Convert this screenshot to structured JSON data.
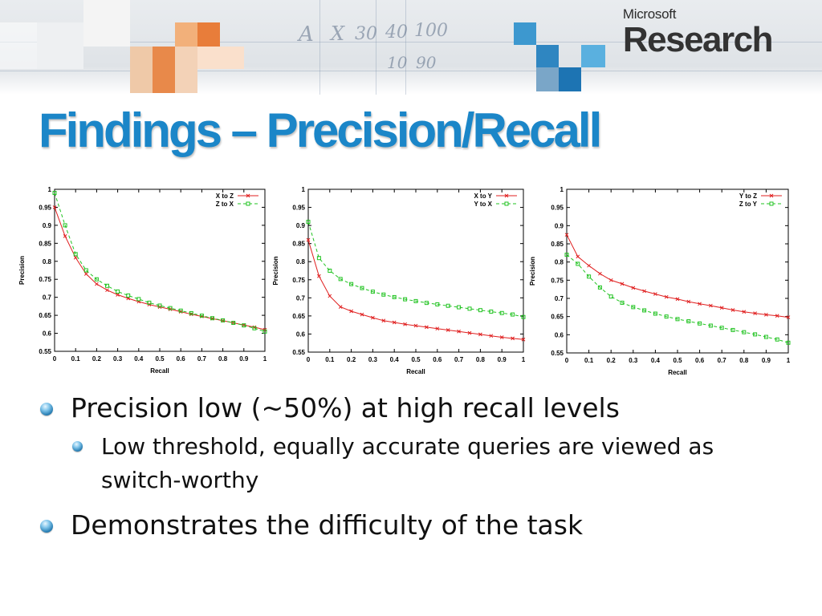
{
  "header": {
    "logo_top": "Microsoft",
    "logo_bottom": "Research",
    "scribbles": [
      "A",
      "X",
      "30",
      "40",
      "100",
      "10",
      "90"
    ]
  },
  "slide": {
    "title": "Findings – Precision/Recall"
  },
  "bullets": [
    {
      "level": 1,
      "text": "Precision low (~50%) at high recall levels"
    },
    {
      "level": 2,
      "text": "Low threshold, equally accurate queries are viewed as switch-worthy"
    },
    {
      "level": 1,
      "text": "Demonstrates the difficulty of the task"
    }
  ],
  "colors": {
    "title": "#1b86c8",
    "series_solid": "#e02020",
    "series_dashed": "#22c322"
  },
  "chart_data": [
    {
      "type": "line",
      "xlabel": "Recall",
      "ylabel": "Precision",
      "xlim": [
        0,
        1
      ],
      "ylim": [
        0.55,
        1
      ],
      "xticks": [
        "0",
        "0.1",
        "0.2",
        "0.3",
        "0.4",
        "0.5",
        "0.6",
        "0.7",
        "0.8",
        "0.9",
        "1"
      ],
      "yticks": [
        "0.55",
        "0.6",
        "0.65",
        "0.7",
        "0.75",
        "0.8",
        "0.85",
        "0.9",
        "0.95",
        "1"
      ],
      "legend": "top-right",
      "x": [
        0,
        0.05,
        0.1,
        0.15,
        0.2,
        0.25,
        0.3,
        0.35,
        0.4,
        0.45,
        0.5,
        0.55,
        0.6,
        0.65,
        0.7,
        0.75,
        0.8,
        0.85,
        0.9,
        0.95,
        1.0
      ],
      "series": [
        {
          "name": "X to Z",
          "style": "solid",
          "marker": "x",
          "values": [
            0.95,
            0.87,
            0.81,
            0.765,
            0.737,
            0.72,
            0.707,
            0.697,
            0.688,
            0.68,
            0.673,
            0.667,
            0.66,
            0.653,
            0.647,
            0.641,
            0.635,
            0.629,
            0.623,
            0.617,
            0.61
          ]
        },
        {
          "name": "Z to X",
          "style": "dashed",
          "marker": "square",
          "values": [
            0.99,
            0.9,
            0.82,
            0.775,
            0.75,
            0.732,
            0.716,
            0.705,
            0.695,
            0.685,
            0.677,
            0.67,
            0.663,
            0.656,
            0.649,
            0.642,
            0.636,
            0.629,
            0.622,
            0.614,
            0.605
          ]
        }
      ]
    },
    {
      "type": "line",
      "xlabel": "Recall",
      "ylabel": "Precision",
      "xlim": [
        0,
        1
      ],
      "ylim": [
        0.55,
        1
      ],
      "xticks": [
        "0",
        "0.1",
        "0.2",
        "0.3",
        "0.4",
        "0.5",
        "0.6",
        "0.7",
        "0.8",
        "0.9",
        "1"
      ],
      "yticks": [
        "0.55",
        "0.6",
        "0.65",
        "0.7",
        "0.75",
        "0.8",
        "0.85",
        "0.9",
        "0.95",
        "1"
      ],
      "legend": "top-right",
      "x": [
        0,
        0.05,
        0.1,
        0.15,
        0.2,
        0.25,
        0.3,
        0.35,
        0.4,
        0.45,
        0.5,
        0.55,
        0.6,
        0.65,
        0.7,
        0.75,
        0.8,
        0.85,
        0.9,
        0.95,
        1.0
      ],
      "series": [
        {
          "name": "X to Y",
          "style": "solid",
          "marker": "x",
          "values": [
            0.86,
            0.76,
            0.705,
            0.675,
            0.663,
            0.654,
            0.645,
            0.637,
            0.632,
            0.627,
            0.623,
            0.619,
            0.615,
            0.611,
            0.607,
            0.603,
            0.599,
            0.595,
            0.591,
            0.588,
            0.585
          ]
        },
        {
          "name": "Y to X",
          "style": "dashed",
          "marker": "square",
          "values": [
            0.91,
            0.81,
            0.775,
            0.752,
            0.738,
            0.727,
            0.717,
            0.709,
            0.702,
            0.696,
            0.691,
            0.686,
            0.682,
            0.678,
            0.674,
            0.67,
            0.666,
            0.662,
            0.658,
            0.654,
            0.647
          ]
        }
      ]
    },
    {
      "type": "line",
      "xlabel": "Recall",
      "ylabel": "Precision",
      "xlim": [
        0,
        1
      ],
      "ylim": [
        0.55,
        1
      ],
      "xticks": [
        "0",
        "0.1",
        "0.2",
        "0.3",
        "0.4",
        "0.5",
        "0.6",
        "0.7",
        "0.8",
        "0.9",
        "1"
      ],
      "yticks": [
        "0.55",
        "0.6",
        "0.65",
        "0.7",
        "0.75",
        "0.8",
        "0.85",
        "0.9",
        "0.95",
        "1"
      ],
      "legend": "top-right",
      "x": [
        0,
        0.05,
        0.1,
        0.15,
        0.2,
        0.25,
        0.3,
        0.35,
        0.4,
        0.45,
        0.5,
        0.55,
        0.6,
        0.65,
        0.7,
        0.75,
        0.8,
        0.85,
        0.9,
        0.95,
        1.0
      ],
      "series": [
        {
          "name": "Y to Z",
          "style": "solid",
          "marker": "x",
          "values": [
            0.875,
            0.815,
            0.79,
            0.768,
            0.75,
            0.74,
            0.729,
            0.72,
            0.712,
            0.704,
            0.698,
            0.691,
            0.685,
            0.68,
            0.674,
            0.668,
            0.663,
            0.659,
            0.655,
            0.652,
            0.648
          ]
        },
        {
          "name": "Z to Y",
          "style": "dashed",
          "marker": "square",
          "values": [
            0.82,
            0.795,
            0.76,
            0.73,
            0.705,
            0.688,
            0.676,
            0.667,
            0.658,
            0.65,
            0.643,
            0.637,
            0.631,
            0.625,
            0.619,
            0.613,
            0.607,
            0.601,
            0.594,
            0.587,
            0.578
          ]
        }
      ]
    }
  ]
}
